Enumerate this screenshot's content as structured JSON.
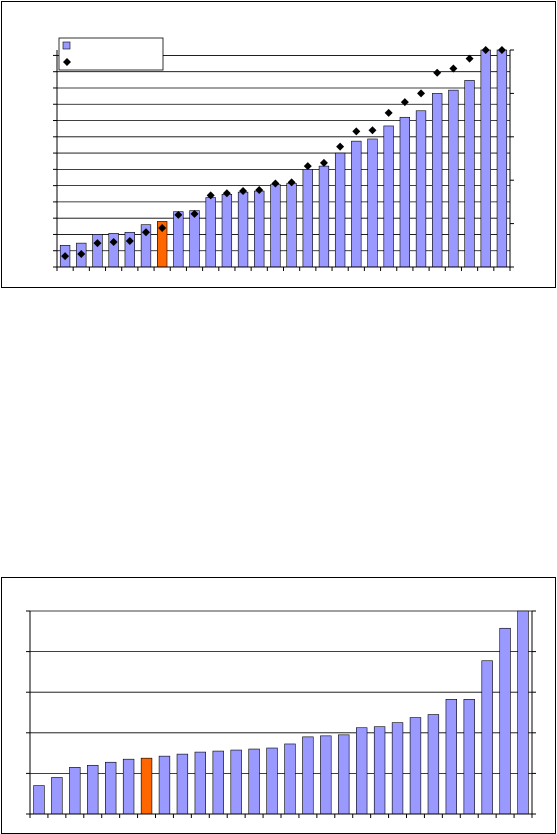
{
  "chart_data": [
    {
      "type": "bar",
      "title": "",
      "xlabel": "",
      "ylabel": "",
      "ylim": [
        0,
        100
      ],
      "y2lim": [
        0,
        100
      ],
      "grid": true,
      "legend": "top-left",
      "highlight_index": 6,
      "colors": {
        "bar": "#9999ff",
        "highlight": "#ff6600",
        "marker": "#000000"
      },
      "series": [
        {
          "type": "bar",
          "values": [
            10,
            11,
            15,
            15.5,
            16,
            19.5,
            21,
            25.5,
            26,
            32,
            33.5,
            34.5,
            35,
            38,
            38.5,
            45,
            46.5,
            52.5,
            58,
            59,
            65,
            69,
            72,
            80,
            81.5,
            86,
            100,
            100
          ]
        },
        {
          "type": "marker",
          "axis": "right",
          "values": [
            5,
            6,
            11,
            11.5,
            12,
            16,
            18,
            24,
            24.5,
            33,
            34,
            35,
            35.5,
            38.5,
            39,
            46.5,
            48,
            55.5,
            62.5,
            63,
            71,
            76,
            80,
            89.5,
            91.5,
            96,
            100,
            100
          ]
        }
      ]
    },
    {
      "type": "bar",
      "title": "",
      "xlabel": "",
      "ylabel": "",
      "ylim": [
        0,
        100
      ],
      "grid": true,
      "highlight_index": 6,
      "colors": {
        "bar": "#9999ff",
        "highlight": "#ff6600"
      },
      "series": [
        {
          "type": "bar",
          "values": [
            14,
            18,
            23,
            24,
            25.5,
            27,
            27.5,
            28.5,
            29.5,
            30.5,
            31,
            31.5,
            32,
            32.5,
            34.5,
            38,
            38.5,
            39,
            42.5,
            43,
            45,
            47.5,
            49,
            56.5,
            56.5,
            75.5,
            91.5,
            100
          ]
        }
      ]
    }
  ]
}
